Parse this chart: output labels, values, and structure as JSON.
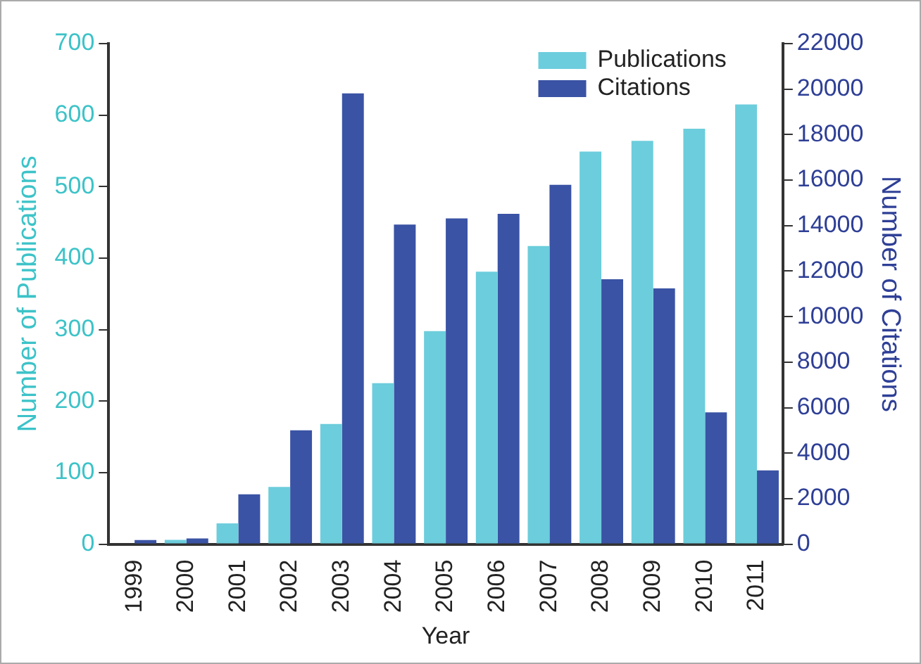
{
  "chart_data": {
    "type": "bar",
    "xlabel": "Year",
    "ylabel": "Number of Publications",
    "y2label": "Number of Citations",
    "categories": [
      "1999",
      "2000",
      "2001",
      "2002",
      "2003",
      "2004",
      "2005",
      "2006",
      "2007",
      "2008",
      "2009",
      "2010",
      "2011"
    ],
    "series": [
      {
        "name": "Publications",
        "color": "#6ccddc",
        "values": [
          0,
          6,
          29,
          80,
          168,
          225,
          298,
          381,
          417,
          549,
          564,
          581,
          615
        ]
      },
      {
        "name": "Citations",
        "color": "#3a53a4",
        "axis": "y2",
        "values": [
          180,
          250,
          2190,
          5000,
          19810,
          14050,
          14320,
          14520,
          15790,
          11640,
          11240,
          5790,
          3240
        ]
      }
    ],
    "ylim": [
      0,
      700
    ],
    "yticks": [
      0,
      100,
      200,
      300,
      400,
      500,
      600,
      700
    ],
    "y2lim": [
      0,
      22000
    ],
    "y2ticks": [
      0,
      2000,
      4000,
      6000,
      8000,
      10000,
      12000,
      14000,
      16000,
      18000,
      20000,
      22000
    ],
    "legend": "top right",
    "grid": false
  }
}
